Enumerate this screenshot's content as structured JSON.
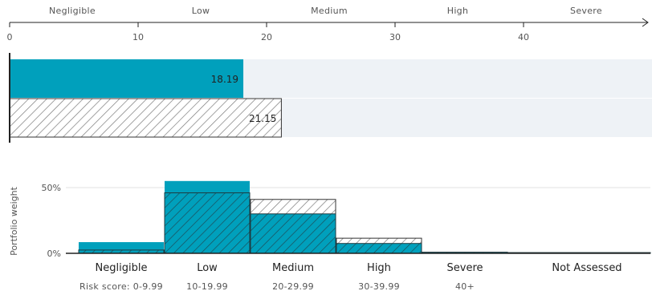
{
  "colors": {
    "portfolio": "#00a0bc",
    "benchmark_hatch": "#7a7a7a",
    "track": "#eef2f6",
    "axis": "#222222",
    "grid": "#e0e0e0"
  },
  "chart_data": [
    {
      "type": "bar",
      "orientation": "horizontal",
      "scale_bands": [
        "Negligible",
        "Low",
        "Medium",
        "High",
        "Severe"
      ],
      "x_ticks": [
        0,
        10,
        20,
        30,
        40
      ],
      "xlim": [
        0,
        50
      ],
      "series": [
        {
          "style": "solid",
          "value": 18.19,
          "label": "18.19"
        },
        {
          "style": "hatched",
          "value": 21.15,
          "label": "21.15"
        }
      ]
    },
    {
      "type": "bar",
      "ylabel": "Portfolio weight",
      "y_ticks": [
        "0%",
        "50%"
      ],
      "ylim": [
        0,
        60
      ],
      "categories": [
        "Negligible",
        "Low",
        "Medium",
        "High",
        "Severe",
        "Not Assessed"
      ],
      "category_sublabels": [
        "Risk score: 0-9.99",
        "10-19.99",
        "20-29.99",
        "30-39.99",
        "40+",
        ""
      ],
      "series": [
        {
          "style": "solid",
          "values": [
            8.5,
            55,
            30,
            7.5,
            0.8,
            0.5
          ]
        },
        {
          "style": "hatched",
          "values": [
            2.5,
            46,
            41,
            11.5,
            0.8,
            0.5
          ]
        }
      ]
    }
  ]
}
